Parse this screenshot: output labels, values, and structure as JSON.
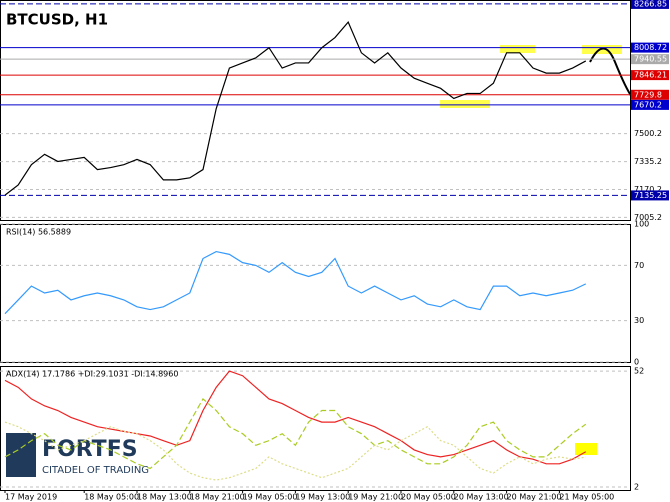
{
  "chart_data": [
    {
      "type": "line",
      "title": "BTCUSD, H1",
      "x": [
        0,
        2,
        4,
        6,
        8,
        10,
        12,
        14,
        16,
        18,
        20,
        22,
        24,
        26,
        28,
        30,
        32,
        34,
        36,
        38,
        40,
        42,
        44,
        46,
        48,
        50,
        52,
        54,
        56,
        58,
        60,
        62,
        64,
        66,
        68,
        70,
        72,
        74,
        76,
        78,
        80,
        82,
        84,
        86,
        88
      ],
      "series": [
        {
          "name": "BTCUSD",
          "color": "#000000",
          "values": [
            7137,
            7197,
            7317,
            7378,
            7336,
            7348,
            7360,
            7288,
            7300,
            7317,
            7348,
            7317,
            7227,
            7227,
            7239,
            7288,
            7648,
            7888,
            7918,
            7948,
            8008,
            7888,
            7918,
            7918,
            8008,
            8068,
            8159,
            7978,
            7918,
            7978,
            7888,
            7828,
            7798,
            7768,
            7708,
            7738,
            7738,
            7798,
            7978,
            7978,
            7888,
            7858,
            7858,
            7888,
            7930
          ]
        }
      ],
      "ylim": [
        6990,
        8290
      ],
      "yticks": [
        7005.2,
        7170.2,
        7335.2,
        7500.2
      ],
      "levels": [
        {
          "value": 8266.85,
          "color": "#0000aa",
          "style": "dashed"
        },
        {
          "value": 8008.72,
          "color": "#0000cc",
          "style": "solid"
        },
        {
          "value": 7940.55,
          "color": "#aaaaaa",
          "style": "solid"
        },
        {
          "value": 7846.21,
          "color": "#dd0000",
          "style": "solid"
        },
        {
          "value": 7729.8,
          "color": "#dd0000",
          "style": "solid"
        },
        {
          "value": 7670.2,
          "color": "#0000cc",
          "style": "solid"
        },
        {
          "value": 7135.25,
          "color": "#0000aa",
          "style": "dashed"
        }
      ]
    },
    {
      "type": "line",
      "label": "RSI(14) 56.5889",
      "series": [
        {
          "name": "RSI",
          "color": "#3399ff",
          "values": [
            35,
            45,
            55,
            50,
            52,
            45,
            48,
            50,
            48,
            45,
            40,
            38,
            40,
            45,
            50,
            75,
            80,
            78,
            72,
            70,
            65,
            72,
            65,
            62,
            65,
            75,
            55,
            50,
            55,
            50,
            45,
            48,
            42,
            40,
            45,
            40,
            38,
            55,
            55,
            48,
            50,
            48,
            50,
            52,
            56.6
          ]
        }
      ],
      "ylim": [
        0,
        100
      ],
      "yticks": [
        0,
        30,
        70,
        100
      ]
    },
    {
      "type": "line",
      "label": "ADX(14) 17.1786 +DI:29.1031 -DI:14.8960",
      "series": [
        {
          "name": "ADX",
          "color": "#ee2222",
          "style": "solid",
          "values": [
            48,
            45,
            40,
            37,
            35,
            32,
            30,
            28,
            27,
            26,
            25,
            24,
            22,
            20,
            22,
            35,
            45,
            52,
            50,
            45,
            40,
            38,
            35,
            32,
            30,
            30,
            32,
            30,
            28,
            25,
            22,
            18,
            16,
            15,
            16,
            18,
            20,
            22,
            18,
            15,
            14,
            12,
            12,
            14,
            17.2
          ]
        },
        {
          "name": "+DI",
          "color": "#aacc22",
          "style": "dashed",
          "values": [
            15,
            18,
            22,
            25,
            20,
            18,
            22,
            20,
            18,
            15,
            12,
            10,
            15,
            20,
            30,
            40,
            35,
            28,
            25,
            20,
            22,
            25,
            20,
            30,
            35,
            35,
            28,
            25,
            20,
            22,
            18,
            15,
            12,
            12,
            15,
            20,
            28,
            30,
            22,
            18,
            15,
            15,
            20,
            25,
            29.1
          ]
        },
        {
          "name": "-DI",
          "color": "#dddd88",
          "style": "dotted",
          "values": [
            30,
            28,
            25,
            22,
            18,
            20,
            22,
            25,
            28,
            26,
            25,
            22,
            18,
            12,
            8,
            6,
            5,
            6,
            8,
            10,
            15,
            12,
            10,
            8,
            6,
            8,
            10,
            15,
            20,
            18,
            22,
            25,
            28,
            22,
            20,
            15,
            10,
            8,
            12,
            15,
            12,
            14,
            15,
            14,
            14.9
          ]
        }
      ],
      "ylim": [
        0.7,
        54.2
      ],
      "yticks": [
        2,
        52
      ],
      "xticks": [
        {
          "value": 0,
          "label": "17 May 2019"
        },
        {
          "value": 12,
          "label": "18 May 05:00"
        },
        {
          "value": 20,
          "label": "18 May 13:00"
        },
        {
          "value": 28,
          "label": "18 May 21:00"
        },
        {
          "value": 36,
          "label": "19 May 05:00"
        },
        {
          "value": 44,
          "label": "19 May 13:00"
        },
        {
          "value": 52,
          "label": "19 May 21:00"
        },
        {
          "value": 60,
          "label": "20 May 05:00"
        },
        {
          "value": 68,
          "label": "20 May 13:00"
        },
        {
          "value": 76,
          "label": "20 May 21:00"
        },
        {
          "value": 84,
          "label": "21 May 05:00"
        }
      ]
    }
  ],
  "logo": {
    "name": "FORTFS",
    "tagline": "CITADEL OF TRADING"
  }
}
